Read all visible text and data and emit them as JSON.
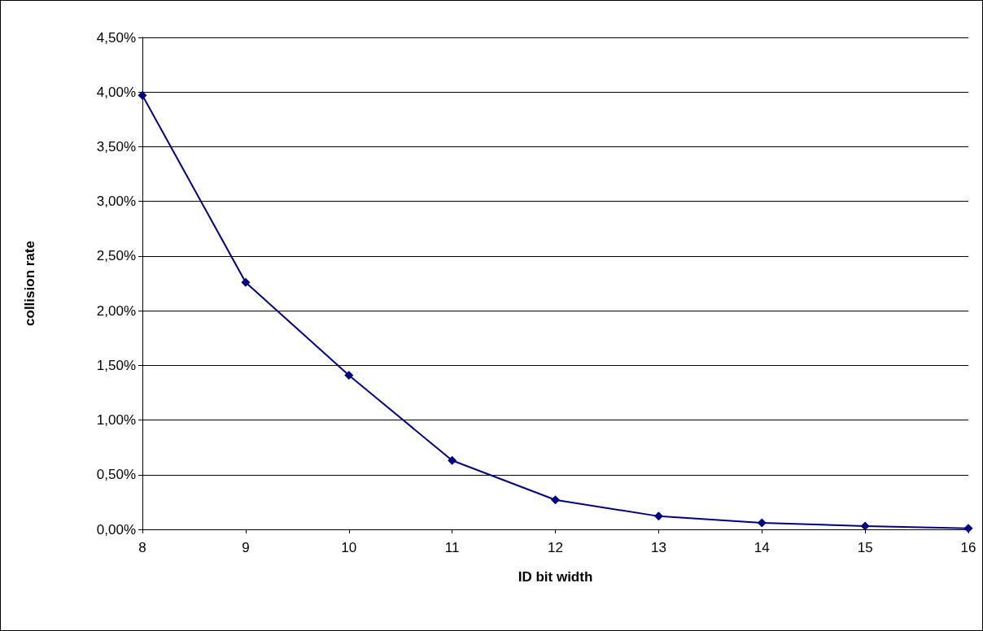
{
  "chart_data": {
    "type": "line",
    "xlabel": "ID bit width",
    "ylabel": "collision rate",
    "x": [
      8,
      9,
      10,
      11,
      12,
      13,
      14,
      15,
      16
    ],
    "series": [
      {
        "color": "#000080",
        "values": [
          3.97,
          2.26,
          1.41,
          0.63,
          0.27,
          0.12,
          0.06,
          0.03,
          0.01
        ]
      }
    ],
    "xlim": [
      8,
      16
    ],
    "xticks": [
      8,
      9,
      10,
      11,
      12,
      13,
      14,
      15,
      16
    ],
    "ylim": [
      0,
      4.5
    ],
    "yticks": [
      {
        "value": 0,
        "label": "0,00%"
      },
      {
        "value": 0.5,
        "label": "0,50%"
      },
      {
        "value": 1,
        "label": "1,00%"
      },
      {
        "value": 1.5,
        "label": "1,50%"
      },
      {
        "value": 2,
        "label": "2,00%"
      },
      {
        "value": 2.5,
        "label": "2,50%"
      },
      {
        "value": 3,
        "label": "3,00%"
      },
      {
        "value": 3.5,
        "label": "3,50%"
      },
      {
        "value": 4,
        "label": "4,00%"
      },
      {
        "value": 4.5,
        "label": "4,50%"
      }
    ],
    "grid": "y",
    "marker": "diamond",
    "line_style": "solid"
  }
}
